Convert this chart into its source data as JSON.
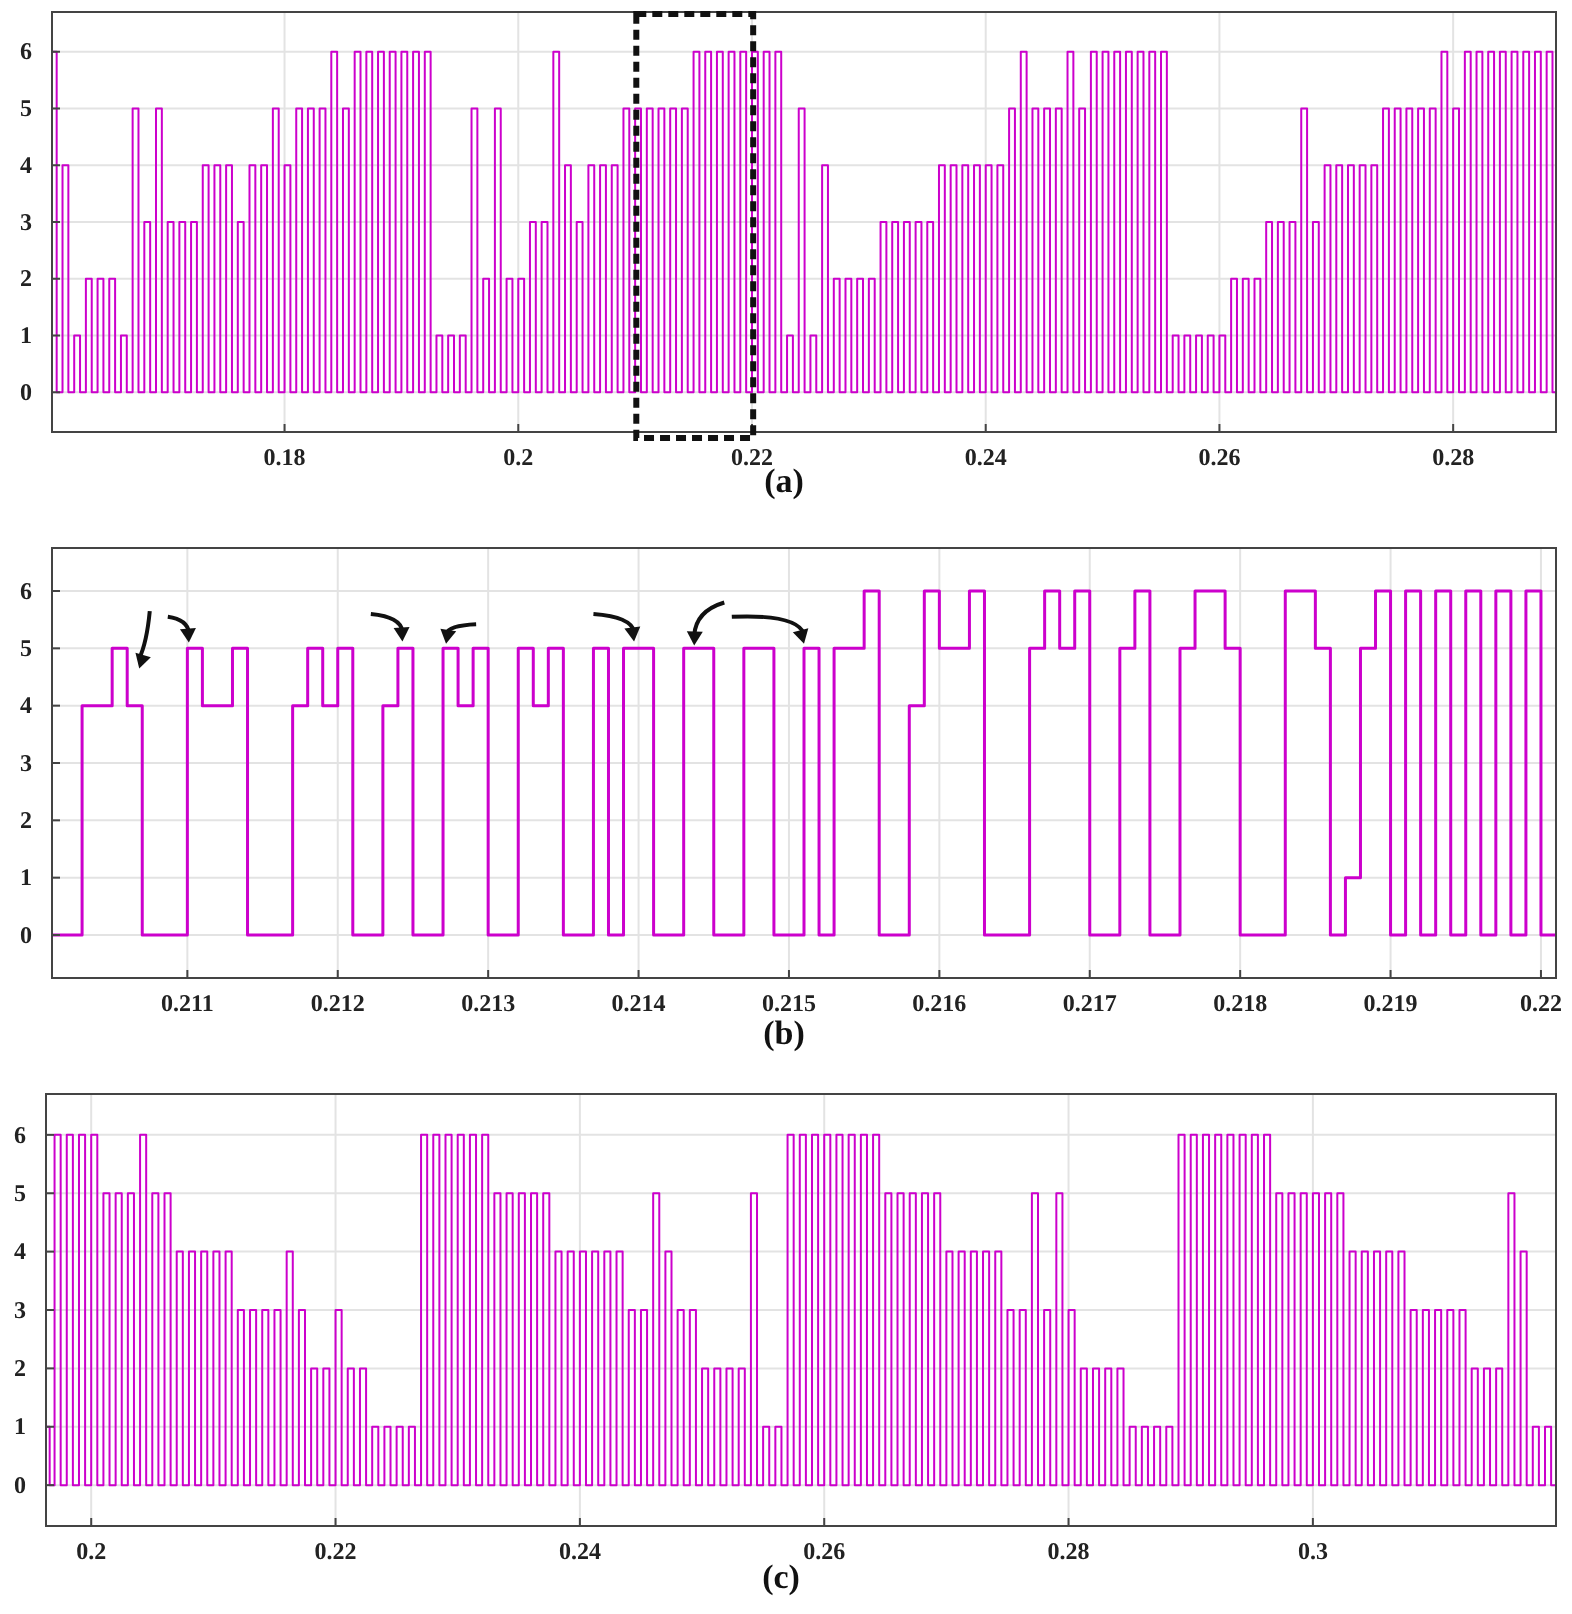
{
  "chart_data": [
    {
      "type": "step",
      "xlabel": "(a)",
      "xlim": [
        0.1601,
        0.2888
      ],
      "ylim": [
        -0.7,
        6.7
      ],
      "xticks": [
        0.18,
        0.2,
        0.22,
        0.24,
        0.26,
        0.28
      ],
      "yticks": [
        0,
        1,
        2,
        3,
        4,
        5,
        6
      ],
      "grid": true,
      "series": [
        {
          "color": "#cc00cc",
          "x": [
            0.1601,
            0.1605,
            0.161,
            0.1615,
            0.162,
            0.1625,
            0.163,
            0.1635,
            0.164,
            0.1645,
            0.165,
            0.1655,
            0.166,
            0.1665,
            0.167,
            0.1675,
            0.168,
            0.1685,
            0.169,
            0.1695,
            0.17,
            0.1705,
            0.171,
            0.1715,
            0.172,
            0.1725,
            0.173,
            0.1735,
            0.174,
            0.1745,
            0.175,
            0.1755,
            0.176,
            0.1765,
            0.177,
            0.1775,
            0.178,
            0.1785,
            0.179,
            0.1795,
            0.18,
            0.1805,
            0.181,
            0.1815,
            0.182,
            0.1825,
            0.183,
            0.1835,
            0.184,
            0.1845,
            0.185,
            0.1855,
            0.186,
            0.1865,
            0.187,
            0.1875,
            0.188,
            0.1885,
            0.189,
            0.1895,
            0.19,
            0.1905,
            0.191,
            0.1915,
            0.192,
            0.1925,
            0.193,
            0.1935,
            0.194,
            0.1945,
            0.195,
            0.1955,
            0.196,
            0.1965,
            0.197,
            0.1975,
            0.198,
            0.1985,
            0.199,
            0.1995,
            0.2,
            0.2005,
            0.201,
            0.2015,
            0.202,
            0.2025,
            0.203,
            0.2035,
            0.204,
            0.2045,
            0.205,
            0.2055,
            0.206,
            0.2065,
            0.207,
            0.2075,
            0.208,
            0.2085,
            0.209,
            0.2095,
            0.21,
            0.2105,
            0.211,
            0.2115,
            0.212,
            0.2125,
            0.213,
            0.2135,
            0.214,
            0.2145,
            0.215,
            0.2155,
            0.216,
            0.2165,
            0.217,
            0.2175,
            0.218,
            0.2185,
            0.219,
            0.2195,
            0.22,
            0.2205,
            0.221,
            0.2215,
            0.222,
            0.2225,
            0.223,
            0.2235,
            0.224,
            0.2245,
            0.225,
            0.2255,
            0.226,
            0.2265,
            0.227,
            0.2275,
            0.228,
            0.2285,
            0.229,
            0.2295,
            0.23,
            0.2305,
            0.231,
            0.2315,
            0.232,
            0.2325,
            0.233,
            0.2335,
            0.234,
            0.2345,
            0.235,
            0.2355,
            0.236,
            0.2365,
            0.237,
            0.2375,
            0.238,
            0.2385,
            0.239,
            0.2395,
            0.24,
            0.2405,
            0.241,
            0.2415,
            0.242,
            0.2425,
            0.243,
            0.2435,
            0.244,
            0.2445,
            0.245,
            0.2455,
            0.246,
            0.2465,
            0.247,
            0.2475,
            0.248,
            0.2485,
            0.249,
            0.2495,
            0.25,
            0.2505,
            0.251,
            0.2515,
            0.252,
            0.2525,
            0.253,
            0.2535,
            0.254,
            0.2545,
            0.255,
            0.2555,
            0.256,
            0.2565,
            0.257,
            0.2575,
            0.258,
            0.2585,
            0.259,
            0.2595,
            0.26,
            0.2605,
            0.261,
            0.2615,
            0.262,
            0.2625,
            0.263,
            0.2635,
            0.264,
            0.2645,
            0.265,
            0.2655,
            0.266,
            0.2665,
            0.267,
            0.2675,
            0.268,
            0.2685,
            0.269,
            0.2695,
            0.27,
            0.2705,
            0.271,
            0.2715,
            0.272,
            0.2725,
            0.273,
            0.2735,
            0.274,
            0.2745,
            0.275,
            0.2755,
            0.276,
            0.2765,
            0.277,
            0.2775,
            0.278,
            0.2785,
            0.279,
            0.2795,
            0.28,
            0.2805,
            0.281,
            0.2815,
            0.282,
            0.2825,
            0.283,
            0.2835,
            0.284,
            0.2845,
            0.285,
            0.2855,
            0.286,
            0.2865,
            0.287,
            0.2875,
            0.288,
            0.2885,
            0.2888
          ],
          "values": [
            6,
            0,
            4,
            0,
            1,
            0,
            2,
            0,
            2,
            0,
            2,
            0,
            1,
            0,
            5,
            0,
            3,
            0,
            5,
            0,
            3,
            0,
            3,
            0,
            3,
            0,
            4,
            0,
            4,
            0,
            4,
            0,
            3,
            0,
            4,
            0,
            4,
            0,
            5,
            0,
            4,
            0,
            5,
            0,
            5,
            0,
            5,
            0,
            6,
            0,
            5,
            0,
            6,
            0,
            6,
            0,
            6,
            0,
            6,
            0,
            6,
            0,
            6,
            0,
            6,
            0,
            1,
            0,
            1,
            0,
            1,
            0,
            5,
            0,
            2,
            0,
            5,
            0,
            2,
            0,
            2,
            0,
            3,
            0,
            3,
            0,
            6,
            0,
            4,
            0,
            3,
            0,
            4,
            0,
            4,
            0,
            4,
            0,
            5,
            0,
            5,
            0,
            5,
            0,
            5,
            0,
            5,
            0,
            5,
            0,
            6,
            0,
            6,
            0,
            6,
            0,
            6,
            0,
            6,
            0,
            6,
            0,
            6,
            0,
            6,
            0,
            1,
            0,
            5,
            0,
            1,
            0,
            4,
            0,
            2,
            0,
            2,
            0,
            2,
            0,
            2,
            0,
            3,
            0,
            3,
            0,
            3,
            0,
            3,
            0,
            3,
            0,
            4,
            0,
            4,
            0,
            4,
            0,
            4,
            0,
            4,
            0,
            4,
            0,
            5,
            0,
            6,
            0,
            5,
            0,
            5,
            0,
            5,
            0,
            6,
            0,
            5,
            0,
            6,
            0,
            6,
            0,
            6,
            0,
            6,
            0,
            6,
            0,
            6,
            0,
            6,
            0,
            1,
            0,
            1,
            0,
            1,
            0,
            1,
            0,
            1,
            0,
            2,
            0,
            2,
            0,
            2,
            0,
            3,
            0,
            3,
            0,
            3,
            0,
            5,
            0,
            3,
            0,
            4,
            0,
            4,
            0,
            4,
            0,
            4,
            0,
            4,
            0,
            5,
            0,
            5,
            0,
            5,
            0,
            5,
            0,
            5,
            0,
            6,
            0,
            5,
            0,
            6,
            0,
            6,
            0,
            6,
            0,
            6,
            0,
            6,
            0,
            6,
            0,
            6,
            0,
            6,
            0,
            0
          ]
        }
      ]
    },
    {
      "type": "step",
      "xlabel": "(b)",
      "xlim": [
        0.2101,
        0.2201
      ],
      "ylim": [
        -0.75,
        6.75
      ],
      "xticks": [
        0.211,
        0.212,
        0.213,
        0.214,
        0.215,
        0.216,
        0.217,
        0.218,
        0.219,
        0.22
      ],
      "yticks": [
        0,
        1,
        2,
        3,
        4,
        5,
        6
      ],
      "grid": true,
      "series": [
        {
          "color": "#cc00cc",
          "x": [
            0.2101,
            0.2103,
            0.2105,
            0.2106,
            0.2107,
            0.211,
            0.2111,
            0.2113,
            0.2114,
            0.2117,
            0.2118,
            0.2119,
            0.212,
            0.2121,
            0.2123,
            0.2124,
            0.2125,
            0.2127,
            0.2128,
            0.2129,
            0.213,
            0.2132,
            0.2133,
            0.2134,
            0.2135,
            0.2137,
            0.2138,
            0.2139,
            0.2141,
            0.2143,
            0.2145,
            0.2147,
            0.2149,
            0.2151,
            0.2152,
            0.2153,
            0.2155,
            0.2156,
            0.2158,
            0.2159,
            0.216,
            0.2162,
            0.2163,
            0.2166,
            0.2167,
            0.2168,
            0.2169,
            0.217,
            0.2172,
            0.2173,
            0.2174,
            0.2176,
            0.2177,
            0.2179,
            0.218,
            0.2183,
            0.2185,
            0.2186,
            0.2187,
            0.2188,
            0.2189,
            0.219,
            0.2191,
            0.2192,
            0.2193,
            0.2194,
            0.2195,
            0.2196,
            0.2197,
            0.2198,
            0.2199,
            0.22,
            0.2201
          ],
          "values": [
            0,
            4,
            5,
            4,
            0,
            5,
            4,
            5,
            0,
            4,
            5,
            4,
            5,
            0,
            4,
            5,
            0,
            5,
            4,
            5,
            0,
            5,
            4,
            5,
            0,
            5,
            0,
            5,
            0,
            5,
            0,
            5,
            0,
            5,
            0,
            5,
            6,
            0,
            4,
            6,
            5,
            6,
            0,
            5,
            6,
            5,
            6,
            0,
            5,
            6,
            0,
            5,
            6,
            5,
            0,
            6,
            5,
            0,
            1,
            5,
            6,
            0,
            6,
            0,
            6,
            0,
            6,
            0,
            6,
            0,
            6,
            0,
            0
          ]
        }
      ]
    },
    {
      "type": "step",
      "xlabel": "(c)",
      "xlim": [
        0.1963,
        0.3199
      ],
      "ylim": [
        -0.7,
        6.7
      ],
      "xticks": [
        0.2,
        0.22,
        0.24,
        0.26,
        0.28,
        0.3
      ],
      "yticks": [
        0,
        1,
        2,
        3,
        4,
        5,
        6
      ],
      "grid": true,
      "series": [
        {
          "color": "#cc00cc",
          "x": [
            0.1963,
            0.1966,
            0.197,
            0.1975,
            0.198,
            0.1985,
            0.199,
            0.1995,
            0.2,
            0.2005,
            0.201,
            0.2015,
            0.202,
            0.2025,
            0.203,
            0.2035,
            0.204,
            0.2045,
            0.205,
            0.2055,
            0.206,
            0.2065,
            0.207,
            0.2075,
            0.208,
            0.2085,
            0.209,
            0.2095,
            0.21,
            0.2105,
            0.211,
            0.2115,
            0.212,
            0.2125,
            0.213,
            0.2135,
            0.214,
            0.2145,
            0.215,
            0.2155,
            0.216,
            0.2165,
            0.217,
            0.2175,
            0.218,
            0.2185,
            0.219,
            0.2195,
            0.22,
            0.2205,
            0.221,
            0.2215,
            0.222,
            0.2225,
            0.223,
            0.2235,
            0.224,
            0.2245,
            0.225,
            0.2255,
            0.226,
            0.2265,
            0.227,
            0.2275,
            0.228,
            0.2285,
            0.229,
            0.2295,
            0.23,
            0.2305,
            0.231,
            0.2315,
            0.232,
            0.2325,
            0.233,
            0.2335,
            0.234,
            0.2345,
            0.235,
            0.2355,
            0.236,
            0.2365,
            0.237,
            0.2375,
            0.238,
            0.2385,
            0.239,
            0.2395,
            0.24,
            0.2405,
            0.241,
            0.2415,
            0.242,
            0.2425,
            0.243,
            0.2435,
            0.244,
            0.2445,
            0.245,
            0.2455,
            0.246,
            0.2465,
            0.247,
            0.2475,
            0.248,
            0.2485,
            0.249,
            0.2495,
            0.25,
            0.2505,
            0.251,
            0.2515,
            0.252,
            0.2525,
            0.253,
            0.2535,
            0.254,
            0.2545,
            0.255,
            0.2555,
            0.256,
            0.2565,
            0.257,
            0.2575,
            0.258,
            0.2585,
            0.259,
            0.2595,
            0.26,
            0.2605,
            0.261,
            0.2615,
            0.262,
            0.2625,
            0.263,
            0.2635,
            0.264,
            0.2645,
            0.265,
            0.2655,
            0.266,
            0.2665,
            0.267,
            0.2675,
            0.268,
            0.2685,
            0.269,
            0.2695,
            0.27,
            0.2705,
            0.271,
            0.2715,
            0.272,
            0.2725,
            0.273,
            0.2735,
            0.274,
            0.2745,
            0.275,
            0.2755,
            0.276,
            0.2765,
            0.277,
            0.2775,
            0.278,
            0.2785,
            0.279,
            0.2795,
            0.28,
            0.2805,
            0.281,
            0.2815,
            0.282,
            0.2825,
            0.283,
            0.2835,
            0.284,
            0.2845,
            0.285,
            0.2855,
            0.286,
            0.2865,
            0.287,
            0.2875,
            0.288,
            0.2885,
            0.289,
            0.2895,
            0.29,
            0.2905,
            0.291,
            0.2915,
            0.292,
            0.2925,
            0.293,
            0.2935,
            0.294,
            0.2945,
            0.295,
            0.2955,
            0.296,
            0.2965,
            0.297,
            0.2975,
            0.298,
            0.2985,
            0.299,
            0.2995,
            0.3,
            0.3005,
            0.301,
            0.3015,
            0.302,
            0.3025,
            0.303,
            0.3035,
            0.304,
            0.3045,
            0.305,
            0.3055,
            0.306,
            0.3065,
            0.307,
            0.3075,
            0.308,
            0.3085,
            0.309,
            0.3095,
            0.31,
            0.3105,
            0.311,
            0.3115,
            0.312,
            0.3125,
            0.313,
            0.3135,
            0.314,
            0.3145,
            0.315,
            0.3155,
            0.316,
            0.3165,
            0.317,
            0.3175,
            0.318,
            0.3185,
            0.319,
            0.3195,
            0.3199
          ],
          "values": [
            1,
            0,
            6,
            0,
            6,
            0,
            6,
            0,
            6,
            0,
            5,
            0,
            5,
            0,
            5,
            0,
            6,
            0,
            5,
            0,
            5,
            0,
            4,
            0,
            4,
            0,
            4,
            0,
            4,
            0,
            4,
            0,
            3,
            0,
            3,
            0,
            3,
            0,
            3,
            0,
            4,
            0,
            3,
            0,
            2,
            0,
            2,
            0,
            3,
            0,
            2,
            0,
            2,
            0,
            1,
            0,
            1,
            0,
            1,
            0,
            1,
            0,
            6,
            0,
            6,
            0,
            6,
            0,
            6,
            0,
            6,
            0,
            6,
            0,
            5,
            0,
            5,
            0,
            5,
            0,
            5,
            0,
            5,
            0,
            4,
            0,
            4,
            0,
            4,
            0,
            4,
            0,
            4,
            0,
            4,
            0,
            3,
            0,
            3,
            0,
            5,
            0,
            4,
            0,
            3,
            0,
            3,
            0,
            2,
            0,
            2,
            0,
            2,
            0,
            2,
            0,
            5,
            0,
            1,
            0,
            1,
            0,
            6,
            0,
            6,
            0,
            6,
            0,
            6,
            0,
            6,
            0,
            6,
            0,
            6,
            0,
            6,
            0,
            5,
            0,
            5,
            0,
            5,
            0,
            5,
            0,
            5,
            0,
            4,
            0,
            4,
            0,
            4,
            0,
            4,
            0,
            4,
            0,
            3,
            0,
            3,
            0,
            5,
            0,
            3,
            0,
            5,
            0,
            3,
            0,
            2,
            0,
            2,
            0,
            2,
            0,
            2,
            0,
            1,
            0,
            1,
            0,
            1,
            0,
            1,
            0,
            6,
            0,
            6,
            0,
            6,
            0,
            6,
            0,
            6,
            0,
            6,
            0,
            6,
            0,
            6,
            0,
            5,
            0,
            5,
            0,
            5,
            0,
            5,
            0,
            5,
            0,
            5,
            0,
            4,
            0,
            4,
            0,
            4,
            0,
            4,
            0,
            4,
            0,
            3,
            0,
            3,
            0,
            3,
            0,
            3,
            0,
            3,
            0,
            2,
            0,
            2,
            0,
            2,
            0,
            5,
            0,
            4,
            0,
            1,
            0,
            1,
            0,
            1
          ]
        }
      ]
    }
  ]
}
